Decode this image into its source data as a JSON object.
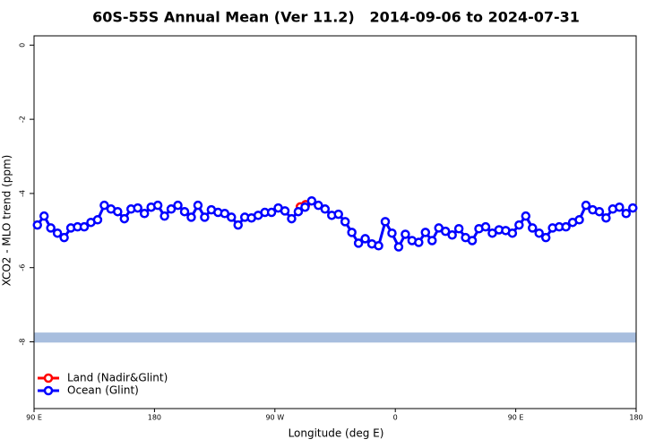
{
  "chart_data": {
    "type": "line",
    "title": "60S-55S Annual Mean (Ver 11.2)   2014-09-06 to 2024-07-31",
    "x_label": "Longitude (deg E)",
    "y_label": "XCO2 - MLO trend (ppm)",
    "xlim": [
      90,
      540
    ],
    "xticks": [
      {
        "value": 90,
        "label": "90 E"
      },
      {
        "value": 180,
        "label": "180"
      },
      {
        "value": 270,
        "label": "90 W"
      },
      {
        "value": 360,
        "label": "0"
      },
      {
        "value": 450,
        "label": "90 E"
      },
      {
        "value": 540,
        "label": "180"
      }
    ],
    "ylim": [
      -9.8,
      0.25
    ],
    "yticks": [
      0,
      -2,
      -4,
      -6,
      -8
    ],
    "coverage_band": {
      "color": "#a8bede",
      "range": [
        -8.02,
        -7.75
      ]
    },
    "legend": "bottom-left",
    "series": [
      {
        "name": "Land (Nadir&Glint)",
        "color": "#ff0000",
        "x": [
          289,
          293
        ],
        "values": [
          -4.36,
          -4.3
        ]
      },
      {
        "name": "Ocean (Glint)",
        "color": "#0000ff",
        "x": [
          92.5,
          97.5,
          102.5,
          107.5,
          112.5,
          117.5,
          122.5,
          127.5,
          132.5,
          137.5,
          142.5,
          147.5,
          152.5,
          157.5,
          162.5,
          167.5,
          172.5,
          177.5,
          182.5,
          187.5,
          192.5,
          197.5,
          202.5,
          207.5,
          212.5,
          217.5,
          222.5,
          227.5,
          232.5,
          237.5,
          242.5,
          247.5,
          252.5,
          257.5,
          262.5,
          267.5,
          272.5,
          277.5,
          282.5,
          287.5,
          292.5,
          297.5,
          302.5,
          307.5,
          312.5,
          317.5,
          322.5,
          327.5,
          332.5,
          337.5,
          342.5,
          347.5,
          352.5,
          357.5,
          362.5,
          367.5,
          372.5,
          377.5,
          382.5,
          387.5,
          392.5,
          397.5,
          402.5,
          407.5,
          412.5,
          417.5,
          422.5,
          427.5,
          432.5,
          437.5,
          442.5,
          447.5,
          452.5,
          457.5,
          462.5,
          467.5,
          472.5,
          477.5,
          482.5,
          487.5,
          492.5,
          497.5,
          502.5,
          507.5,
          512.5,
          517.5,
          522.5,
          527.5,
          532.5,
          537.5
        ],
        "values": [
          -4.85,
          -4.61,
          -4.93,
          -5.07,
          -5.19,
          -4.93,
          -4.9,
          -4.9,
          -4.78,
          -4.71,
          -4.32,
          -4.42,
          -4.49,
          -4.68,
          -4.42,
          -4.39,
          -4.54,
          -4.37,
          -4.32,
          -4.61,
          -4.42,
          -4.32,
          -4.49,
          -4.64,
          -4.32,
          -4.64,
          -4.44,
          -4.51,
          -4.54,
          -4.64,
          -4.85,
          -4.64,
          -4.66,
          -4.59,
          -4.51,
          -4.51,
          -4.39,
          -4.47,
          -4.68,
          -4.49,
          -4.37,
          -4.2,
          -4.32,
          -4.42,
          -4.59,
          -4.56,
          -4.76,
          -5.05,
          -5.34,
          -5.22,
          -5.36,
          -5.41,
          -4.76,
          -5.07,
          -5.44,
          -5.1,
          -5.27,
          -5.32,
          -5.05,
          -5.27,
          -4.93,
          -5.02,
          -5.12,
          -4.95,
          -5.19,
          -5.27,
          -4.95,
          -4.9,
          -5.07,
          -4.98,
          -5,
          -5.07,
          -4.85,
          -4.61,
          -4.93,
          -5.07,
          -5.19,
          -4.93,
          -4.9,
          -4.9,
          -4.78,
          -4.71,
          -4.32,
          -4.44,
          -4.49,
          -4.66,
          -4.42,
          -4.37,
          -4.54,
          -4.39
        ]
      }
    ]
  }
}
